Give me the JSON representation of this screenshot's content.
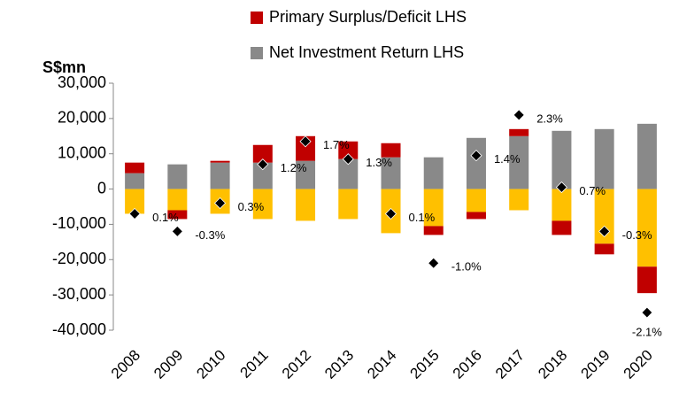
{
  "chart_data": {
    "type": "stacked-bar",
    "y_label": "S$mn",
    "categories": [
      "2008",
      "2009",
      "2010",
      "2011",
      "2012",
      "2013",
      "2014",
      "2015",
      "2016",
      "2017",
      "2018",
      "2019",
      "2020"
    ],
    "series": [
      {
        "name": "Net Investment Return LHS",
        "color": "#898989",
        "values": [
          4500,
          7000,
          7500,
          7500,
          8000,
          8500,
          9000,
          9000,
          14500,
          15000,
          16500,
          17000,
          18500
        ]
      },
      {
        "color": "#ffc000",
        "values": [
          -7000,
          -6000,
          -7000,
          -8500,
          -9000,
          -8500,
          -12500,
          -10500,
          -6500,
          -6000,
          -9000,
          -15500,
          -22000
        ]
      },
      {
        "name": "Primary Surplus/Deficit LHS",
        "color": "#c00000",
        "values": [
          3000,
          -2500,
          500,
          5000,
          7000,
          5000,
          4000,
          -2500,
          -2000,
          2000,
          -4000,
          -3000,
          -7500
        ]
      }
    ],
    "points": {
      "color": "#000000",
      "values": [
        -7000,
        -12000,
        -4000,
        7000,
        13500,
        8500,
        -7000,
        -21000,
        9500,
        21000,
        500,
        -12000,
        -35000
      ],
      "labels": [
        "0.1%",
        "-0.3%",
        "0.3%",
        "1.2%",
        "1.7%",
        "1.3%",
        "0.1%",
        "-1.0%",
        "1.4%",
        "2.3%",
        "0.7%",
        "-0.3%",
        "-2.1%"
      ]
    },
    "ylim": [
      -40000,
      30000
    ],
    "yticks": [
      {
        "value": -40000,
        "label": "-40,000"
      },
      {
        "value": -30000,
        "label": "-30,000"
      },
      {
        "value": -20000,
        "label": "-20,000"
      },
      {
        "value": -10000,
        "label": "-10,000"
      },
      0,
      {
        "value": 10000,
        "label": "10,000"
      },
      {
        "value": 20000,
        "label": "20,000"
      },
      {
        "value": 30000,
        "label": "30,000"
      }
    ],
    "legend_order": [
      2,
      0
    ]
  }
}
